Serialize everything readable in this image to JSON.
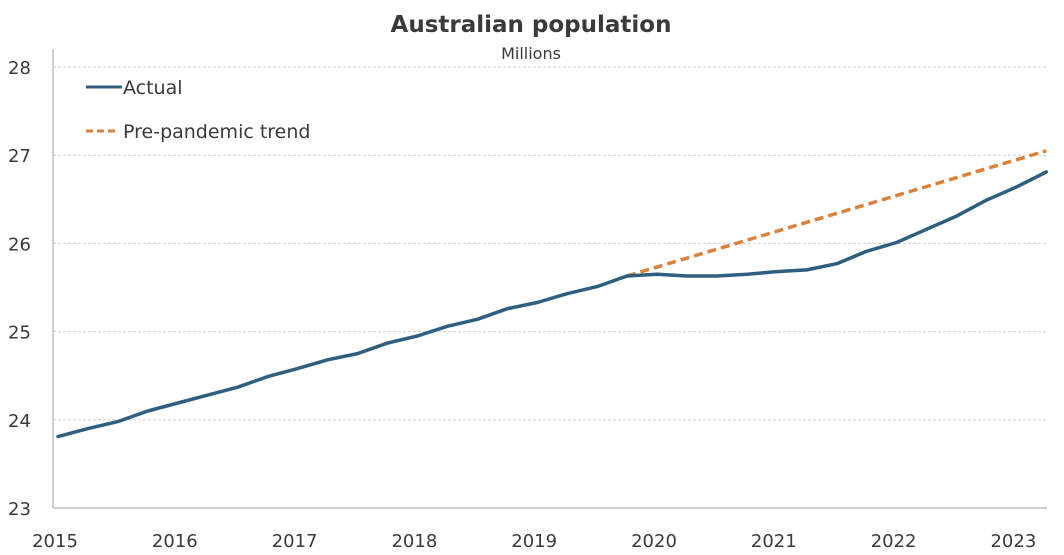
{
  "chart_data": {
    "type": "line",
    "title": "Australian population",
    "subtitle": "Millions",
    "xlabel": "",
    "ylabel": "",
    "ylim": [
      23,
      28
    ],
    "yticks": [
      23,
      24,
      25,
      26,
      27,
      28
    ],
    "xlim": [
      2015.0,
      2023.3
    ],
    "xticks": [
      2015,
      2016,
      2017,
      2018,
      2019,
      2020,
      2021,
      2022,
      2023
    ],
    "grid": true,
    "legend_position": "top-left",
    "series": [
      {
        "name": "Actual",
        "color": "#2e5f80",
        "style": "solid",
        "x": [
          2015.0,
          2015.25,
          2015.5,
          2015.75,
          2016.0,
          2016.25,
          2016.5,
          2016.75,
          2017.0,
          2017.25,
          2017.5,
          2017.75,
          2018.0,
          2018.25,
          2018.5,
          2018.75,
          2019.0,
          2019.25,
          2019.5,
          2019.75,
          2020.0,
          2020.25,
          2020.5,
          2020.75,
          2021.0,
          2021.25,
          2021.5,
          2021.75,
          2022.0,
          2022.25,
          2022.5,
          2022.75,
          2023.0,
          2023.25
        ],
        "values": [
          23.81,
          23.9,
          23.98,
          24.1,
          24.19,
          24.28,
          24.37,
          24.49,
          24.58,
          24.68,
          24.75,
          24.87,
          24.95,
          25.06,
          25.14,
          25.26,
          25.33,
          25.43,
          25.51,
          25.63,
          25.65,
          25.63,
          25.63,
          25.65,
          25.68,
          25.7,
          25.77,
          25.91,
          26.01,
          26.16,
          26.31,
          26.49,
          26.64,
          26.81
        ]
      },
      {
        "name": "Pre-pandemic trend",
        "color": "#d9823b",
        "style": "dashed",
        "x": [
          2019.75,
          2023.25
        ],
        "values": [
          25.63,
          27.05
        ]
      }
    ]
  }
}
